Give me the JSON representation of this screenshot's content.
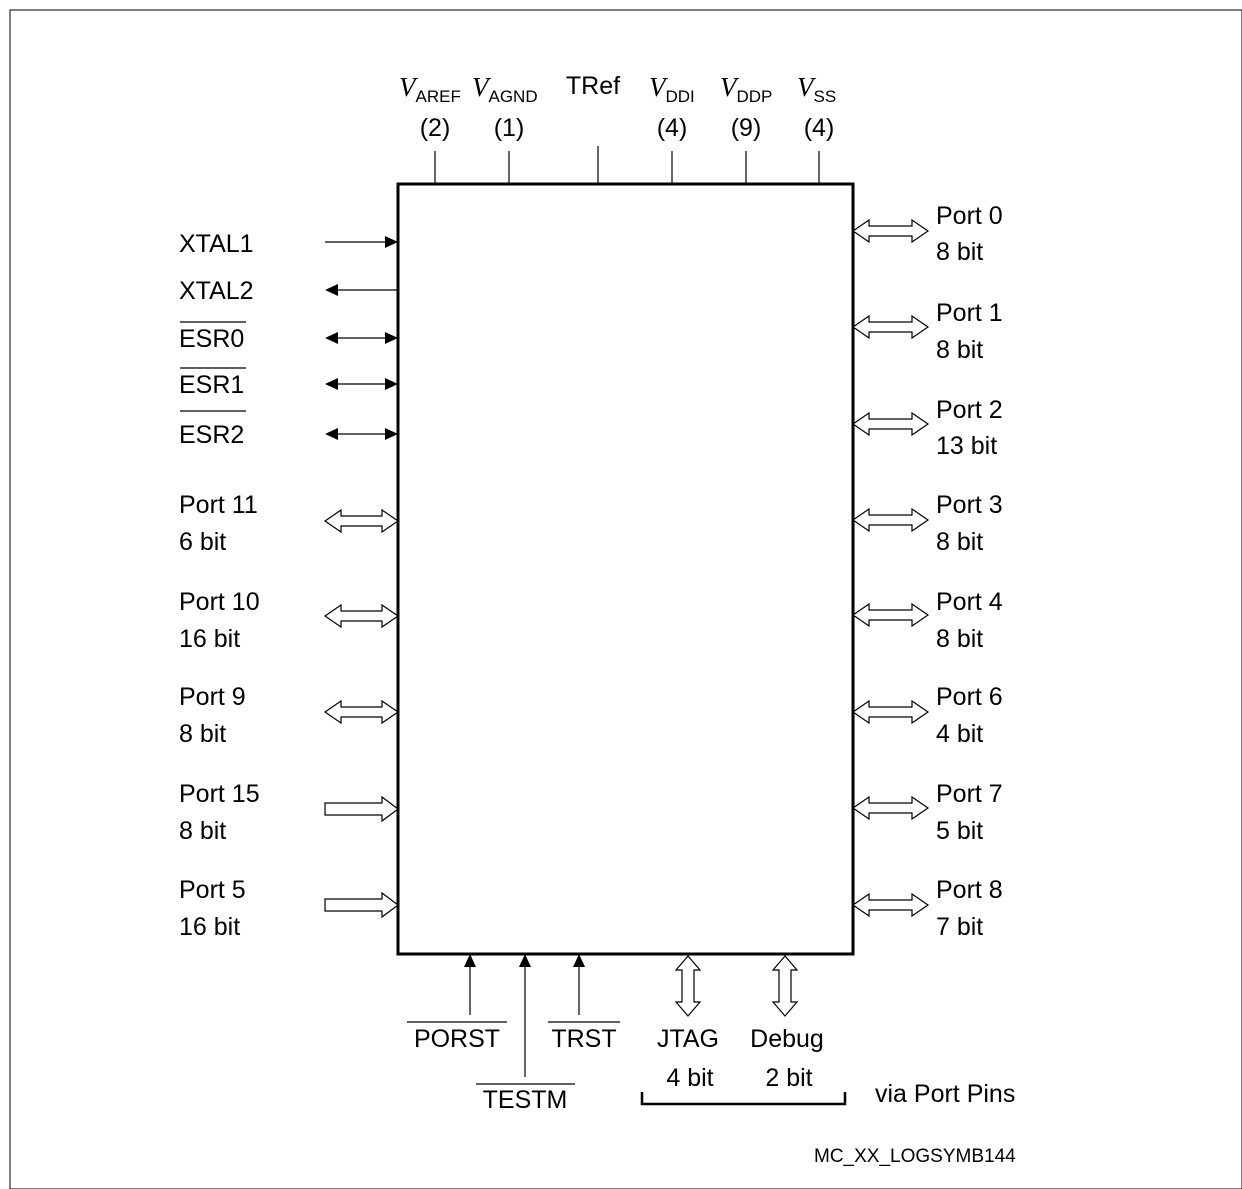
{
  "power_pins": [
    {
      "symbol": "V",
      "subscript": "AREF",
      "count": "(2)"
    },
    {
      "symbol": "V",
      "subscript": "AGND",
      "count": "(1)"
    },
    {
      "label": "TRef"
    },
    {
      "symbol": "V",
      "subscript": "DDI",
      "count": "(4)"
    },
    {
      "symbol": "V",
      "subscript": "DDP",
      "count": "(9)"
    },
    {
      "symbol": "V",
      "subscript": "SS",
      "count": "(4)"
    }
  ],
  "left_signals": [
    "XTAL1",
    "XTAL2",
    "ESR0",
    "ESR1",
    "ESR2"
  ],
  "left_ports": [
    {
      "name": "Port 11",
      "width": "6 bit"
    },
    {
      "name": "Port 10",
      "width": "16 bit"
    },
    {
      "name": "Port 9",
      "width": "8 bit"
    },
    {
      "name": "Port 15",
      "width": "8 bit"
    },
    {
      "name": "Port 5",
      "width": "16 bit"
    }
  ],
  "right_ports": [
    {
      "name": "Port 0",
      "width": "8 bit"
    },
    {
      "name": "Port 1",
      "width": "8 bit"
    },
    {
      "name": "Port 2",
      "width": "13 bit"
    },
    {
      "name": "Port 3",
      "width": "8 bit"
    },
    {
      "name": "Port 4",
      "width": "8 bit"
    },
    {
      "name": "Port 6",
      "width": "4 bit"
    },
    {
      "name": "Port 7",
      "width": "5 bit"
    },
    {
      "name": "Port 8",
      "width": "7 bit"
    }
  ],
  "bottom_signals": [
    "PORST",
    "TESTM",
    "TRST"
  ],
  "bottom_buses": [
    {
      "name": "JTAG",
      "width": "4 bit"
    },
    {
      "name": "Debug",
      "width": "2 bit"
    }
  ],
  "via_label": "via Port Pins",
  "reference": "MC_XX_LOGSYMB144"
}
